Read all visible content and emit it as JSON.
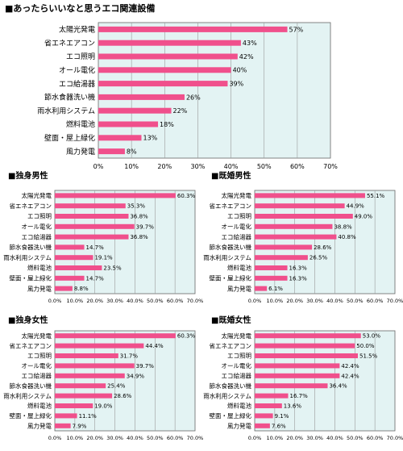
{
  "colors": {
    "bar": "#f0508c",
    "plot_bg": "#e3f3f3",
    "grid": "#9a9a9a",
    "border": "#666666"
  },
  "chart_data": [
    {
      "id": "overall",
      "type": "bar",
      "orientation": "horizontal",
      "title": "■あったらいいなと思うエコ関連設備",
      "categories": [
        "太陽光発電",
        "省エネエアコン",
        "エコ照明",
        "オール電化",
        "エコ給湯器",
        "節水食器洗い機",
        "雨水利用システム",
        "燃料電池",
        "壁面・屋上緑化",
        "風力発電"
      ],
      "values": [
        57,
        43,
        42,
        40,
        39,
        26,
        22,
        18,
        13,
        8
      ],
      "value_labels": [
        "57%",
        "43%",
        "42%",
        "40%",
        "39%",
        "26%",
        "22%",
        "18%",
        "13%",
        "8%"
      ],
      "xlim": [
        0,
        70
      ],
      "ticks": [
        "0%",
        "10%",
        "20%",
        "30%",
        "40%",
        "50%",
        "60%",
        "70%"
      ],
      "grid": true
    },
    {
      "id": "single-male",
      "type": "bar",
      "orientation": "horizontal",
      "title": "■独身男性",
      "categories": [
        "太陽光発電",
        "省エネエアコン",
        "エコ照明",
        "オール電化",
        "エコ給湯器",
        "節水食器洗い機",
        "雨水利用システム",
        "燃料電池",
        "壁面・屋上緑化",
        "風力発電"
      ],
      "values": [
        60.3,
        35.3,
        36.8,
        39.7,
        36.8,
        14.7,
        19.1,
        23.5,
        14.7,
        8.8
      ],
      "value_labels": [
        "60.3%",
        "35.3%",
        "36.8%",
        "39.7%",
        "36.8%",
        "14.7%",
        "19.1%",
        "23.5%",
        "14.7%",
        "8.8%"
      ],
      "xlim": [
        0,
        70
      ],
      "ticks": [
        "0.0%",
        "10.0%",
        "20.0%",
        "30.0%",
        "40.0%",
        "50.0%",
        "60.0%",
        "70.0%"
      ],
      "grid": true
    },
    {
      "id": "married-male",
      "type": "bar",
      "orientation": "horizontal",
      "title": "■既婚男性",
      "categories": [
        "太陽光発電",
        "省エネエアコン",
        "エコ照明",
        "オール電化",
        "エコ給湯器",
        "節水食器洗い機",
        "雨水利用システム",
        "燃料電池",
        "壁面・屋上緑化",
        "風力発電"
      ],
      "values": [
        55.1,
        44.9,
        49.0,
        38.8,
        40.8,
        28.6,
        26.5,
        16.3,
        16.3,
        6.1
      ],
      "value_labels": [
        "55.1%",
        "44.9%",
        "49.0%",
        "38.8%",
        "40.8%",
        "28.6%",
        "26.5%",
        "16.3%",
        "16.3%",
        "6.1%"
      ],
      "xlim": [
        0,
        70
      ],
      "ticks": [
        "0.0%",
        "10.0%",
        "20.0%",
        "30.0%",
        "40.0%",
        "50.0%",
        "60.0%",
        "70.0%"
      ],
      "grid": true
    },
    {
      "id": "single-female",
      "type": "bar",
      "orientation": "horizontal",
      "title": "■独身女性",
      "categories": [
        "太陽光発電",
        "省エネエアコン",
        "エコ照明",
        "オール電化",
        "エコ給湯器",
        "節水食器洗い機",
        "雨水利用システム",
        "燃料電池",
        "壁面・屋上緑化",
        "風力発電"
      ],
      "values": [
        60.3,
        44.4,
        31.7,
        39.7,
        34.9,
        25.4,
        28.6,
        19.0,
        11.1,
        7.9
      ],
      "value_labels": [
        "60.3%",
        "44.4%",
        "31.7%",
        "39.7%",
        "34.9%",
        "25.4%",
        "28.6%",
        "19.0%",
        "11.1%",
        "7.9%"
      ],
      "xlim": [
        0,
        70
      ],
      "ticks": [
        "0.0%",
        "10.0%",
        "20.0%",
        "30.0%",
        "40.0%",
        "50.0%",
        "60.0%",
        "70.0%"
      ],
      "grid": true
    },
    {
      "id": "married-female",
      "type": "bar",
      "orientation": "horizontal",
      "title": "■既婚女性",
      "categories": [
        "太陽光発電",
        "省エネエアコン",
        "エコ照明",
        "オール電化",
        "エコ給湯器",
        "節水食器洗い機",
        "雨水利用システム",
        "燃料電池",
        "壁面・屋上緑化",
        "風力発電"
      ],
      "values": [
        53.0,
        50.0,
        51.5,
        42.4,
        42.4,
        36.4,
        16.7,
        13.6,
        9.1,
        7.6
      ],
      "value_labels": [
        "53.0%",
        "50.0%",
        "51.5%",
        "42.4%",
        "42.4%",
        "36.4%",
        "16.7%",
        "13.6%",
        "9.1%",
        "7.6%"
      ],
      "xlim": [
        0,
        70
      ],
      "ticks": [
        "0.0%",
        "10.0%",
        "20.0%",
        "30.0%",
        "40.0%",
        "50.0%",
        "60.0%",
        "70.0%"
      ],
      "grid": true
    }
  ]
}
